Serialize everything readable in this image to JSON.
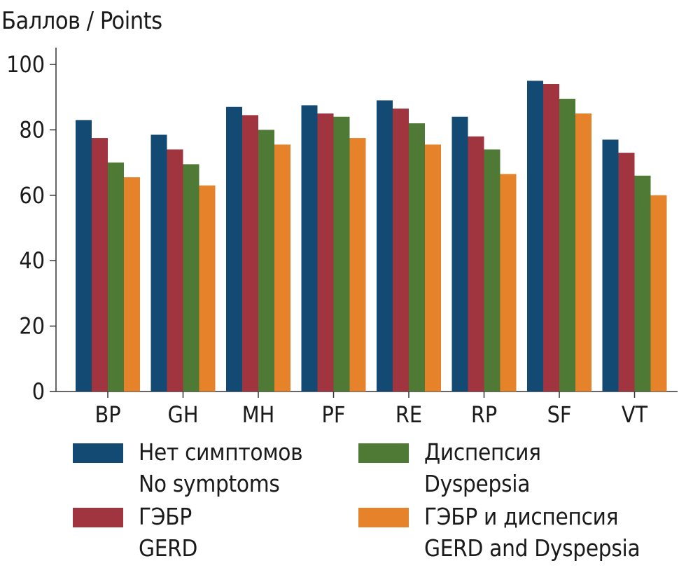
{
  "chart_data": {
    "type": "bar",
    "ylabel": "Баллов / Points",
    "ylim": [
      0,
      100
    ],
    "yticks": [
      0,
      20,
      40,
      60,
      80,
      100
    ],
    "grid": false,
    "legend_position": "bottom",
    "categories": [
      "BP",
      "GH",
      "MH",
      "PF",
      "RE",
      "RP",
      "SF",
      "VT"
    ],
    "series": [
      {
        "name_ru": "Нет симптомов",
        "name_en": "No symptoms",
        "color": "#134a73",
        "values": [
          83,
          78.5,
          87,
          87.5,
          89,
          84,
          95,
          77
        ]
      },
      {
        "name_ru": "ГЭБР",
        "name_en": "GERD",
        "color": "#a0343f",
        "values": [
          77.5,
          74,
          84.5,
          85,
          86.5,
          78,
          94,
          73
        ]
      },
      {
        "name_ru": "Диспепсия",
        "name_en": "Dyspepsia",
        "color": "#4e7a36",
        "values": [
          70,
          69.5,
          80,
          84,
          82,
          74,
          89.5,
          66
        ]
      },
      {
        "name_ru": "ГЭБР и диспепсия",
        "name_en": "GERD and Dyspepsia",
        "color": "#e5822a",
        "values": [
          65.5,
          63,
          75.5,
          77.5,
          75.5,
          66.5,
          85,
          60
        ]
      }
    ]
  }
}
